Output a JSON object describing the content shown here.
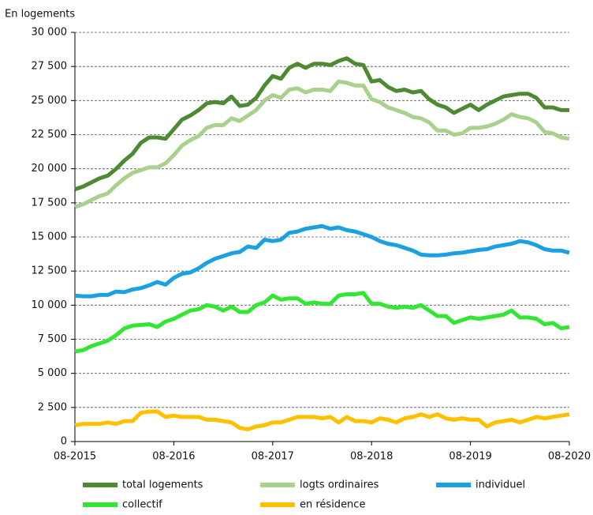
{
  "chart_data": {
    "type": "line",
    "y_axis_label": "En logements",
    "categories": [
      "08-2015",
      null,
      null,
      null,
      null,
      null,
      null,
      null,
      null,
      null,
      null,
      null,
      "08-2016",
      null,
      null,
      null,
      null,
      null,
      null,
      null,
      null,
      null,
      null,
      null,
      "08-2017",
      null,
      null,
      null,
      null,
      null,
      null,
      null,
      null,
      null,
      null,
      null,
      "08-2018",
      null,
      null,
      null,
      null,
      null,
      null,
      null,
      null,
      null,
      null,
      null,
      "08-2019",
      null,
      null,
      null,
      null,
      null,
      null,
      null,
      null,
      null,
      null,
      null,
      "08-2020"
    ],
    "series": [
      {
        "name": "total logements",
        "color": "#4e8a33",
        "values": [
          18500,
          18700,
          19000,
          19300,
          19500,
          20000,
          20600,
          21100,
          21900,
          22300,
          22300,
          22200,
          22900,
          23600,
          23900,
          24300,
          24800,
          24900,
          24800,
          25300,
          24600,
          24700,
          25200,
          26100,
          26800,
          26600,
          27400,
          27700,
          27400,
          27700,
          27700,
          27600,
          27900,
          28100,
          27700,
          27600,
          26400,
          26500,
          26000,
          25700,
          25800,
          25600,
          25700,
          25100,
          24700,
          24500,
          24100,
          24400,
          24700,
          24300,
          24700,
          25000,
          25300,
          25400,
          25500,
          25500,
          25200,
          24500,
          24500,
          24300,
          24300
        ]
      },
      {
        "name": "logts ordinaires",
        "color": "#a9d18e",
        "values": [
          17200,
          17400,
          17700,
          18000,
          18200,
          18800,
          19300,
          19700,
          19900,
          20100,
          20100,
          20400,
          21000,
          21700,
          22100,
          22400,
          23000,
          23200,
          23200,
          23700,
          23500,
          23900,
          24300,
          25000,
          25400,
          25200,
          25800,
          25900,
          25600,
          25800,
          25800,
          25700,
          26400,
          26300,
          26100,
          26100,
          25100,
          24900,
          24500,
          24300,
          24100,
          23800,
          23700,
          23400,
          22800,
          22800,
          22500,
          22600,
          23000,
          23000,
          23100,
          23300,
          23600,
          24000,
          23800,
          23700,
          23400,
          22700,
          22600,
          22300,
          22200
        ]
      },
      {
        "name": "individuel",
        "color": "#1ba1e2",
        "values": [
          10700,
          10650,
          10650,
          10750,
          10750,
          11000,
          10950,
          11150,
          11250,
          11450,
          11700,
          11500,
          12000,
          12300,
          12400,
          12700,
          13100,
          13400,
          13600,
          13800,
          13900,
          14300,
          14200,
          14800,
          14700,
          14800,
          15300,
          15400,
          15600,
          15700,
          15800,
          15600,
          15700,
          15500,
          15400,
          15200,
          15000,
          14700,
          14500,
          14400,
          14200,
          14000,
          13700,
          13650,
          13650,
          13700,
          13800,
          13850,
          13950,
          14050,
          14100,
          14300,
          14400,
          14500,
          14700,
          14600,
          14400,
          14100,
          14000,
          14000,
          13850
        ]
      },
      {
        "name": "collectif",
        "color": "#33e633",
        "values": [
          6600,
          6700,
          7000,
          7200,
          7400,
          7800,
          8300,
          8500,
          8550,
          8600,
          8400,
          8800,
          9000,
          9300,
          9600,
          9700,
          10000,
          9900,
          9600,
          9900,
          9500,
          9500,
          10000,
          10200,
          10700,
          10400,
          10500,
          10500,
          10100,
          10200,
          10100,
          10100,
          10700,
          10800,
          10800,
          10900,
          10100,
          10100,
          9900,
          9800,
          9900,
          9800,
          10000,
          9600,
          9200,
          9200,
          8700,
          8900,
          9100,
          9000,
          9100,
          9200,
          9300,
          9600,
          9100,
          9100,
          9000,
          8600,
          8700,
          8300,
          8400
        ]
      },
      {
        "name": "en résidence",
        "color": "#ffc000",
        "values": [
          1200,
          1300,
          1300,
          1300,
          1400,
          1300,
          1500,
          1500,
          2100,
          2200,
          2200,
          1800,
          1900,
          1800,
          1800,
          1800,
          1600,
          1600,
          1500,
          1400,
          1000,
          900,
          1100,
          1200,
          1400,
          1400,
          1600,
          1800,
          1800,
          1800,
          1700,
          1800,
          1400,
          1800,
          1500,
          1500,
          1400,
          1700,
          1600,
          1400,
          1700,
          1800,
          2000,
          1800,
          2000,
          1700,
          1600,
          1700,
          1600,
          1600,
          1100,
          1400,
          1500,
          1600,
          1400,
          1600,
          1800,
          1700,
          1800,
          1900,
          2000
        ]
      }
    ],
    "ylim": [
      0,
      30000
    ],
    "yticks": [
      0,
      {
        "value": 2500,
        "label": "2 500"
      },
      {
        "value": 5000,
        "label": "5 000"
      },
      {
        "value": 7500,
        "label": "7 500"
      },
      {
        "value": 10000,
        "label": "10 000"
      },
      {
        "value": 12500,
        "label": "12 500"
      },
      {
        "value": 15000,
        "label": "15 000"
      },
      {
        "value": 17500,
        "label": "17 500"
      },
      {
        "value": 20000,
        "label": "20 000"
      },
      {
        "value": 22500,
        "label": "22 500"
      },
      {
        "value": 25000,
        "label": "25 000"
      },
      {
        "value": 27500,
        "label": "27 500"
      },
      {
        "value": 30000,
        "label": "30 000"
      }
    ],
    "grid": true
  }
}
